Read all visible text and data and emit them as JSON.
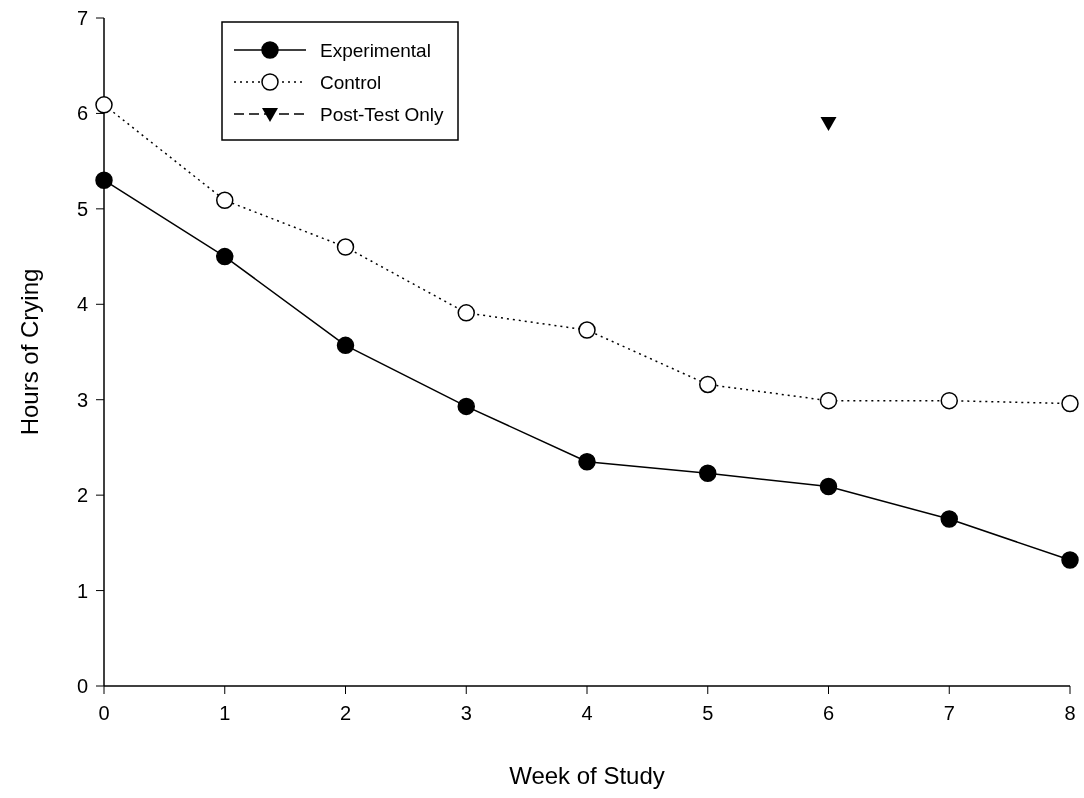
{
  "chart_data": {
    "type": "line",
    "xlabel": "Week of Study",
    "ylabel": "Hours of Crying",
    "x": [
      0,
      1,
      2,
      3,
      4,
      5,
      6,
      7,
      8
    ],
    "xlim": [
      0,
      8
    ],
    "xticks": [
      0,
      1,
      2,
      3,
      4,
      5,
      6,
      7,
      8
    ],
    "ylim": [
      0,
      7
    ],
    "yticks": [
      0,
      1,
      2,
      3,
      4,
      5,
      6,
      7
    ],
    "grid": false,
    "legend": "top left",
    "series": [
      {
        "name": "Experimental",
        "color": "#000000",
        "marker": "circle",
        "line_style": "solid",
        "values": [
          5.3,
          4.5,
          3.57,
          2.93,
          2.35,
          2.23,
          2.09,
          1.75,
          1.32
        ]
      },
      {
        "name": "Control",
        "color": "#000000",
        "marker": "circle",
        "line_style": "dotted",
        "values": [
          6.09,
          5.09,
          4.6,
          3.91,
          3.73,
          3.16,
          2.99,
          2.99,
          2.96
        ]
      },
      {
        "name": "Post-Test Only",
        "type": "scatter",
        "color": "#000000",
        "marker": "triangle",
        "line_style": "dashed",
        "x": [
          6
        ],
        "values": [
          5.9
        ]
      }
    ]
  }
}
